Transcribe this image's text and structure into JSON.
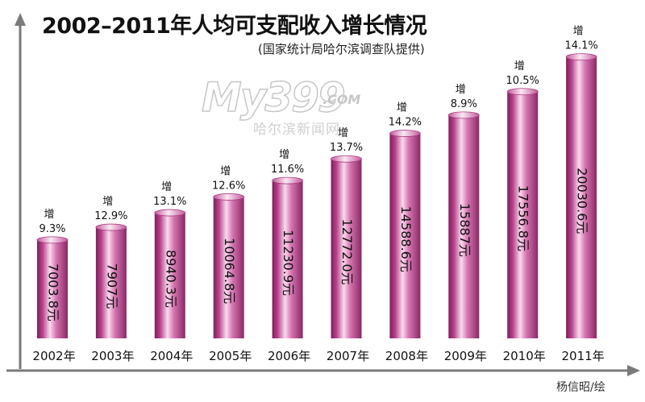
{
  "chart_data": {
    "type": "bar",
    "title": "2002–2011年人均可支配收入增长情况",
    "subtitle": "(国家统计局哈尔滨调查队提供)",
    "categories": [
      "2002年",
      "2003年",
      "2004年",
      "2005年",
      "2006年",
      "2007年",
      "2008年",
      "2009年",
      "2010年",
      "2011年"
    ],
    "values": [
      7003.8,
      7907,
      8940.3,
      10064.8,
      11230.9,
      12772.0,
      14588.6,
      15887,
      17556.8,
      20030.6
    ],
    "value_labels": [
      "7003.8元",
      "7907元",
      "8940.3元",
      "10064.8元",
      "11230.9元",
      "12772.0元",
      "14588.6元",
      "15887元",
      "17556.8元",
      "20030.6元"
    ],
    "growth_prefix": "增",
    "growth_labels": [
      "9.3%",
      "12.9%",
      "13.1%",
      "12.6%",
      "11.6%",
      "13.7%",
      "14.2%",
      "8.9%",
      "10.5%",
      "14.1%"
    ],
    "ylim": [
      0,
      21500
    ],
    "bar_color": "#c24f96",
    "bar_highlight": "#f6d6ea",
    "axis_color": "#7a7a7a"
  },
  "watermark": {
    "main": "My399",
    "suffix": ".COM",
    "sub": "哈尔滨新闻网"
  },
  "credit": "杨信昭/绘"
}
